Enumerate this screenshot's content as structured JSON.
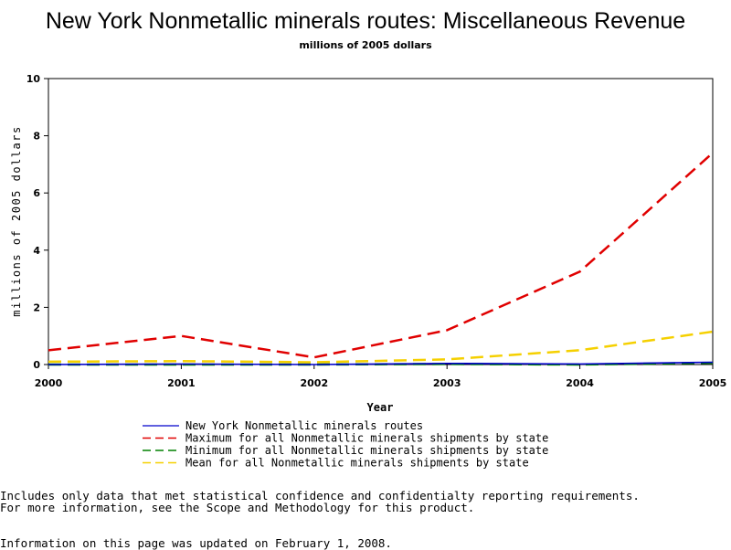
{
  "chart_data": {
    "type": "line",
    "title": "New York Nonmetallic minerals routes: Miscellaneous Revenue",
    "subtitle": "millions of 2005 dollars",
    "xlabel": "Year",
    "ylabel": "millions of 2005 dollars",
    "x": [
      "2000",
      "2001",
      "2002",
      "2003",
      "2004",
      "2005"
    ],
    "ylim": [
      0,
      10
    ],
    "yticks": [
      "0",
      "2",
      "4",
      "6",
      "8",
      "10"
    ],
    "grid": false,
    "legend_position": "bottom",
    "series": [
      {
        "name": "Maximum for all Nonmetallic minerals shipments by state",
        "color": "#e00000",
        "style": "dashed",
        "values": [
          0.5,
          1.0,
          0.25,
          1.2,
          3.25,
          7.4
        ]
      },
      {
        "name": "Mean for all Nonmetallic minerals shipments by state",
        "color": "#f5d000",
        "style": "dashed",
        "values": [
          0.1,
          0.12,
          0.08,
          0.18,
          0.5,
          1.15
        ]
      },
      {
        "name": "Minimum for all Nonmetallic minerals shipments by state",
        "color": "#008000",
        "style": "dashed",
        "values": [
          0.0,
          0.0,
          0.0,
          0.02,
          0.0,
          0.06
        ]
      },
      {
        "name": "New York Nonmetallic minerals routes",
        "color": "#0000cc",
        "style": "solid",
        "values": [
          0.0,
          0.02,
          0.0,
          0.04,
          0.02,
          0.08
        ]
      }
    ],
    "legend_order": [
      3,
      0,
      2,
      1
    ]
  },
  "footnotes": {
    "line1": "Includes only data that met statistical confidence and confidentialty reporting requirements.",
    "line2": "For more information, see the Scope and Methodology for this product.",
    "line3": "Information on this page was updated on February 1, 2008."
  }
}
